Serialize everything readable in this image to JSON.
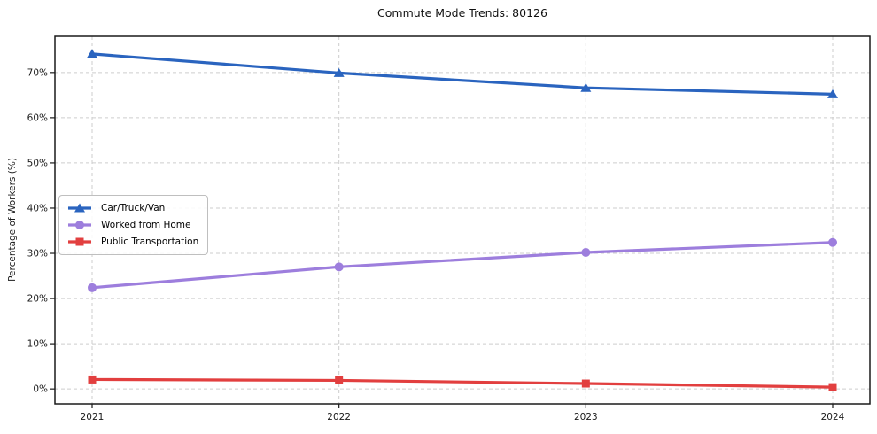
{
  "chart_data": {
    "type": "line",
    "title": "Commute Mode Trends: 80126",
    "xlabel": "",
    "ylabel": "Percentage of Workers (%)",
    "categories": [
      "2021",
      "2022",
      "2023",
      "2024"
    ],
    "y_ticks": [
      0,
      10,
      20,
      30,
      40,
      50,
      60,
      70
    ],
    "y_tick_suffix": "%",
    "ylim": [
      -3.3,
      78.0
    ],
    "grid": true,
    "grid_style": "dashed",
    "legend_position": "center-left",
    "series": [
      {
        "name": "Car/Truck/Van",
        "marker": "triangle",
        "color": "#2a64bf",
        "values": [
          74.1,
          69.9,
          66.6,
          65.2
        ]
      },
      {
        "name": "Worked from Home",
        "marker": "circle",
        "color": "#9d7edd",
        "values": [
          22.4,
          27.0,
          30.2,
          32.4
        ]
      },
      {
        "name": "Public Transportation",
        "marker": "square",
        "color": "#e23f3f",
        "values": [
          2.1,
          1.9,
          1.2,
          0.4
        ]
      }
    ],
    "colors": {
      "grid": "#cdcdcd",
      "spine": "#1a1a1a",
      "background": "#ffffff"
    }
  }
}
